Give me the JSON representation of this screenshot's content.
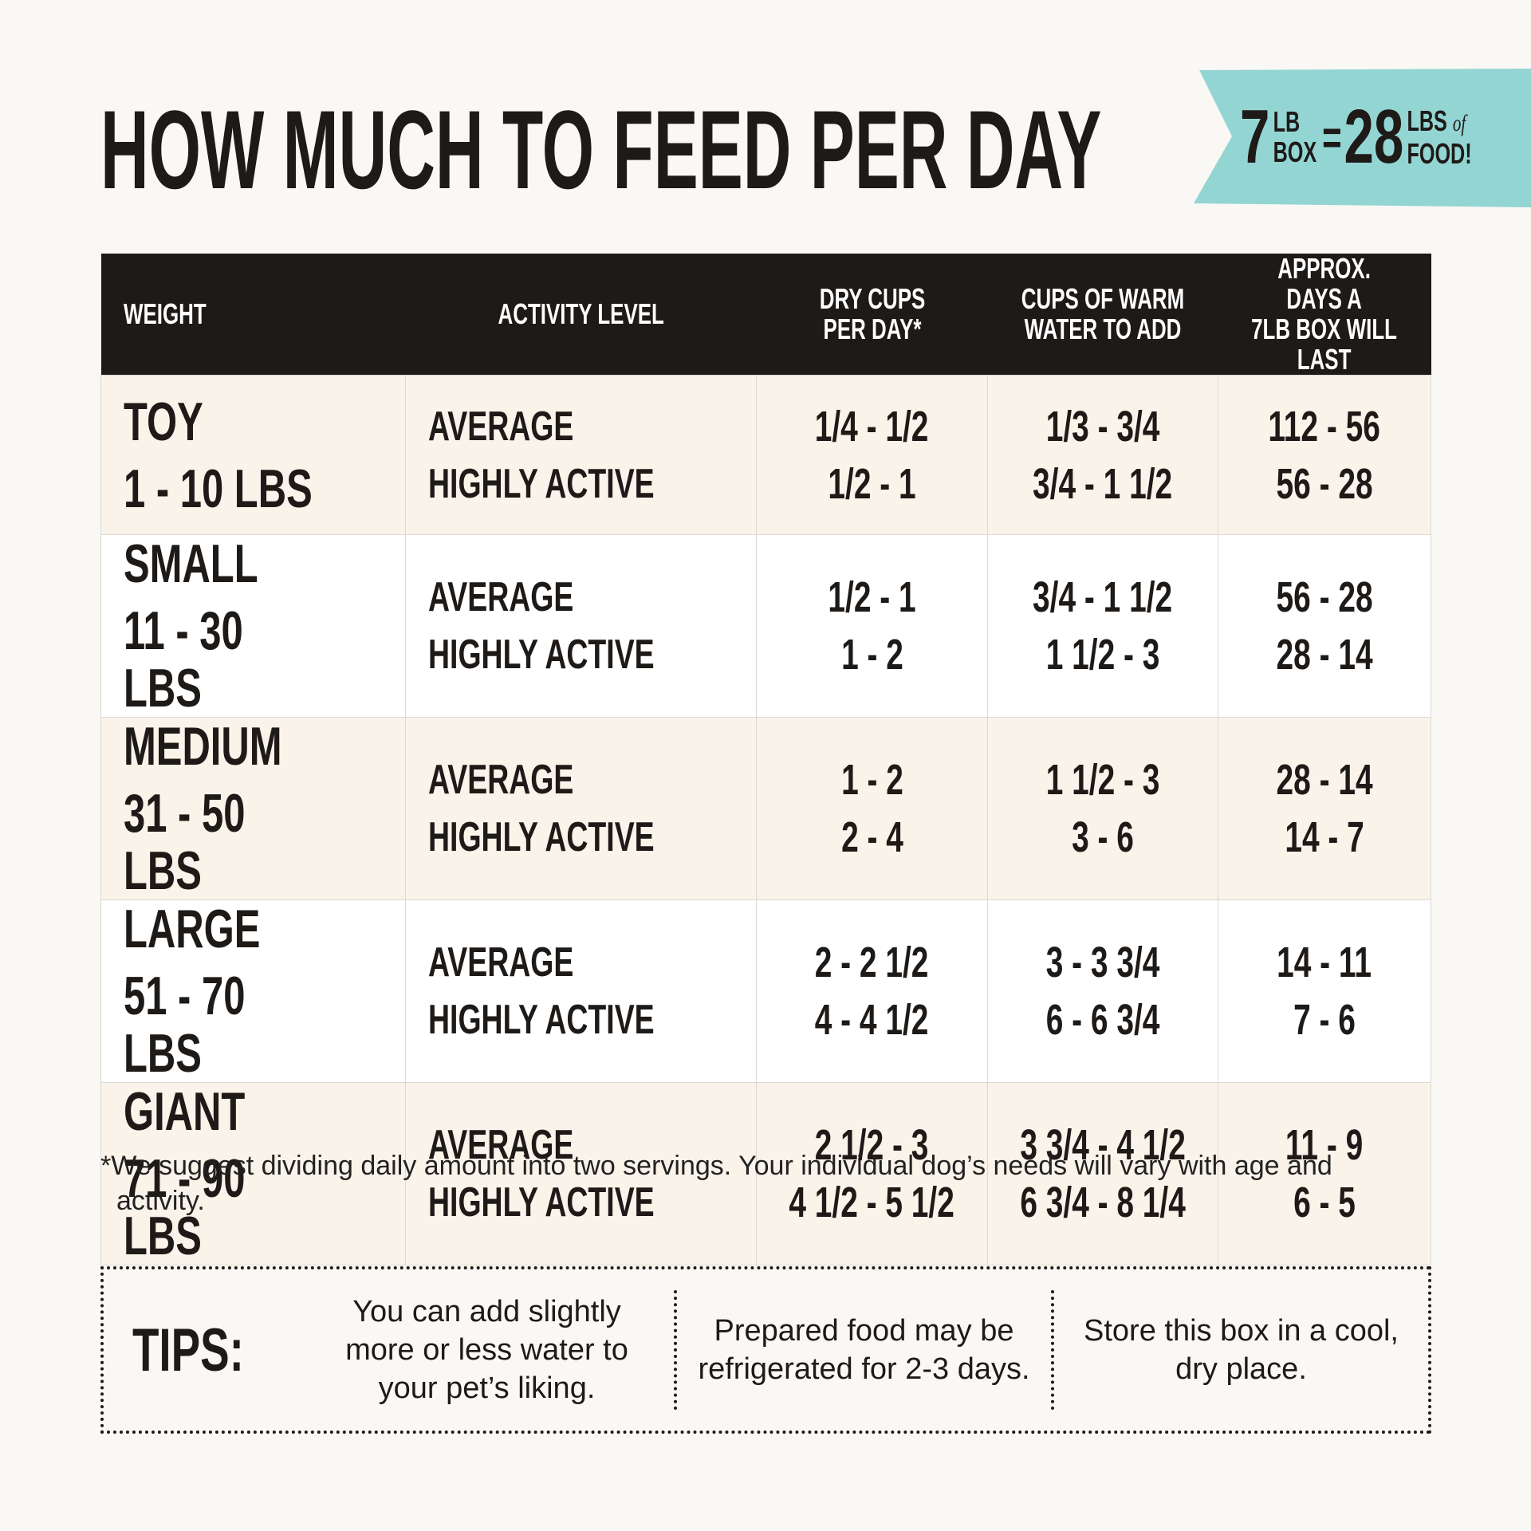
{
  "header": {
    "title": "HOW MUCH TO FEED PER DAY",
    "badge": {
      "box_weight": "7",
      "box_unit_top": "LB",
      "box_unit_bottom": "BOX",
      "equals": "=",
      "food_weight": "28",
      "food_unit_top": "LBS",
      "food_unit_of": "of",
      "food_unit_bottom": "FOOD!"
    }
  },
  "table": {
    "columns": [
      [
        "WEIGHT"
      ],
      [
        "ACTIVITY LEVEL"
      ],
      [
        "DRY CUPS",
        "PER DAY*"
      ],
      [
        "CUPS OF WARM",
        "WATER TO ADD"
      ],
      [
        "APPROX. DAYS A",
        "7LB BOX WILL LAST"
      ]
    ],
    "rows": [
      {
        "size": "TOY",
        "weight": "1 - 10 LBS",
        "levels": [
          "AVERAGE",
          "HIGHLY ACTIVE"
        ],
        "dry": [
          "1/4 - 1/2",
          "1/2 - 1"
        ],
        "water": [
          "1/3 - 3/4",
          "3/4 - 1 1/2"
        ],
        "days": [
          "112 - 56",
          "56 - 28"
        ]
      },
      {
        "size": "SMALL",
        "weight": "11 - 30 LBS",
        "levels": [
          "AVERAGE",
          "HIGHLY ACTIVE"
        ],
        "dry": [
          "1/2 - 1",
          "1 - 2"
        ],
        "water": [
          "3/4 - 1 1/2",
          "1 1/2 - 3"
        ],
        "days": [
          "56 - 28",
          "28 - 14"
        ]
      },
      {
        "size": "MEDIUM",
        "weight": "31 - 50 LBS",
        "levels": [
          "AVERAGE",
          "HIGHLY ACTIVE"
        ],
        "dry": [
          "1 - 2",
          "2 - 4"
        ],
        "water": [
          "1 1/2 - 3",
          "3 - 6"
        ],
        "days": [
          "28 - 14",
          "14 - 7"
        ]
      },
      {
        "size": "LARGE",
        "weight": "51 - 70 LBS",
        "levels": [
          "AVERAGE",
          "HIGHLY ACTIVE"
        ],
        "dry": [
          "2 - 2 1/2",
          "4 - 4 1/2"
        ],
        "water": [
          "3 - 3 3/4",
          "6 - 6 3/4"
        ],
        "days": [
          "14 - 11",
          "7 - 6"
        ]
      },
      {
        "size": "GIANT",
        "weight": "71 - 90 LBS",
        "levels": [
          "AVERAGE",
          "HIGHLY ACTIVE"
        ],
        "dry": [
          "2 1/2 - 3",
          "4 1/2 - 5 1/2"
        ],
        "water": [
          "3 3/4 - 4 1/2",
          "6 3/4 - 8 1/4"
        ],
        "days": [
          "11 - 9",
          "6 - 5"
        ]
      }
    ]
  },
  "footnote": "*We suggest dividing daily amount into two servings. Your individual dog’s needs will vary with age and activity.",
  "tips": {
    "label": "TIPS:",
    "items": [
      "You can add slightly more or less water to your pet’s liking.",
      "Prepared food may be refrigerated for 2-3 days.",
      "Store this box in a cool, dry place."
    ]
  }
}
